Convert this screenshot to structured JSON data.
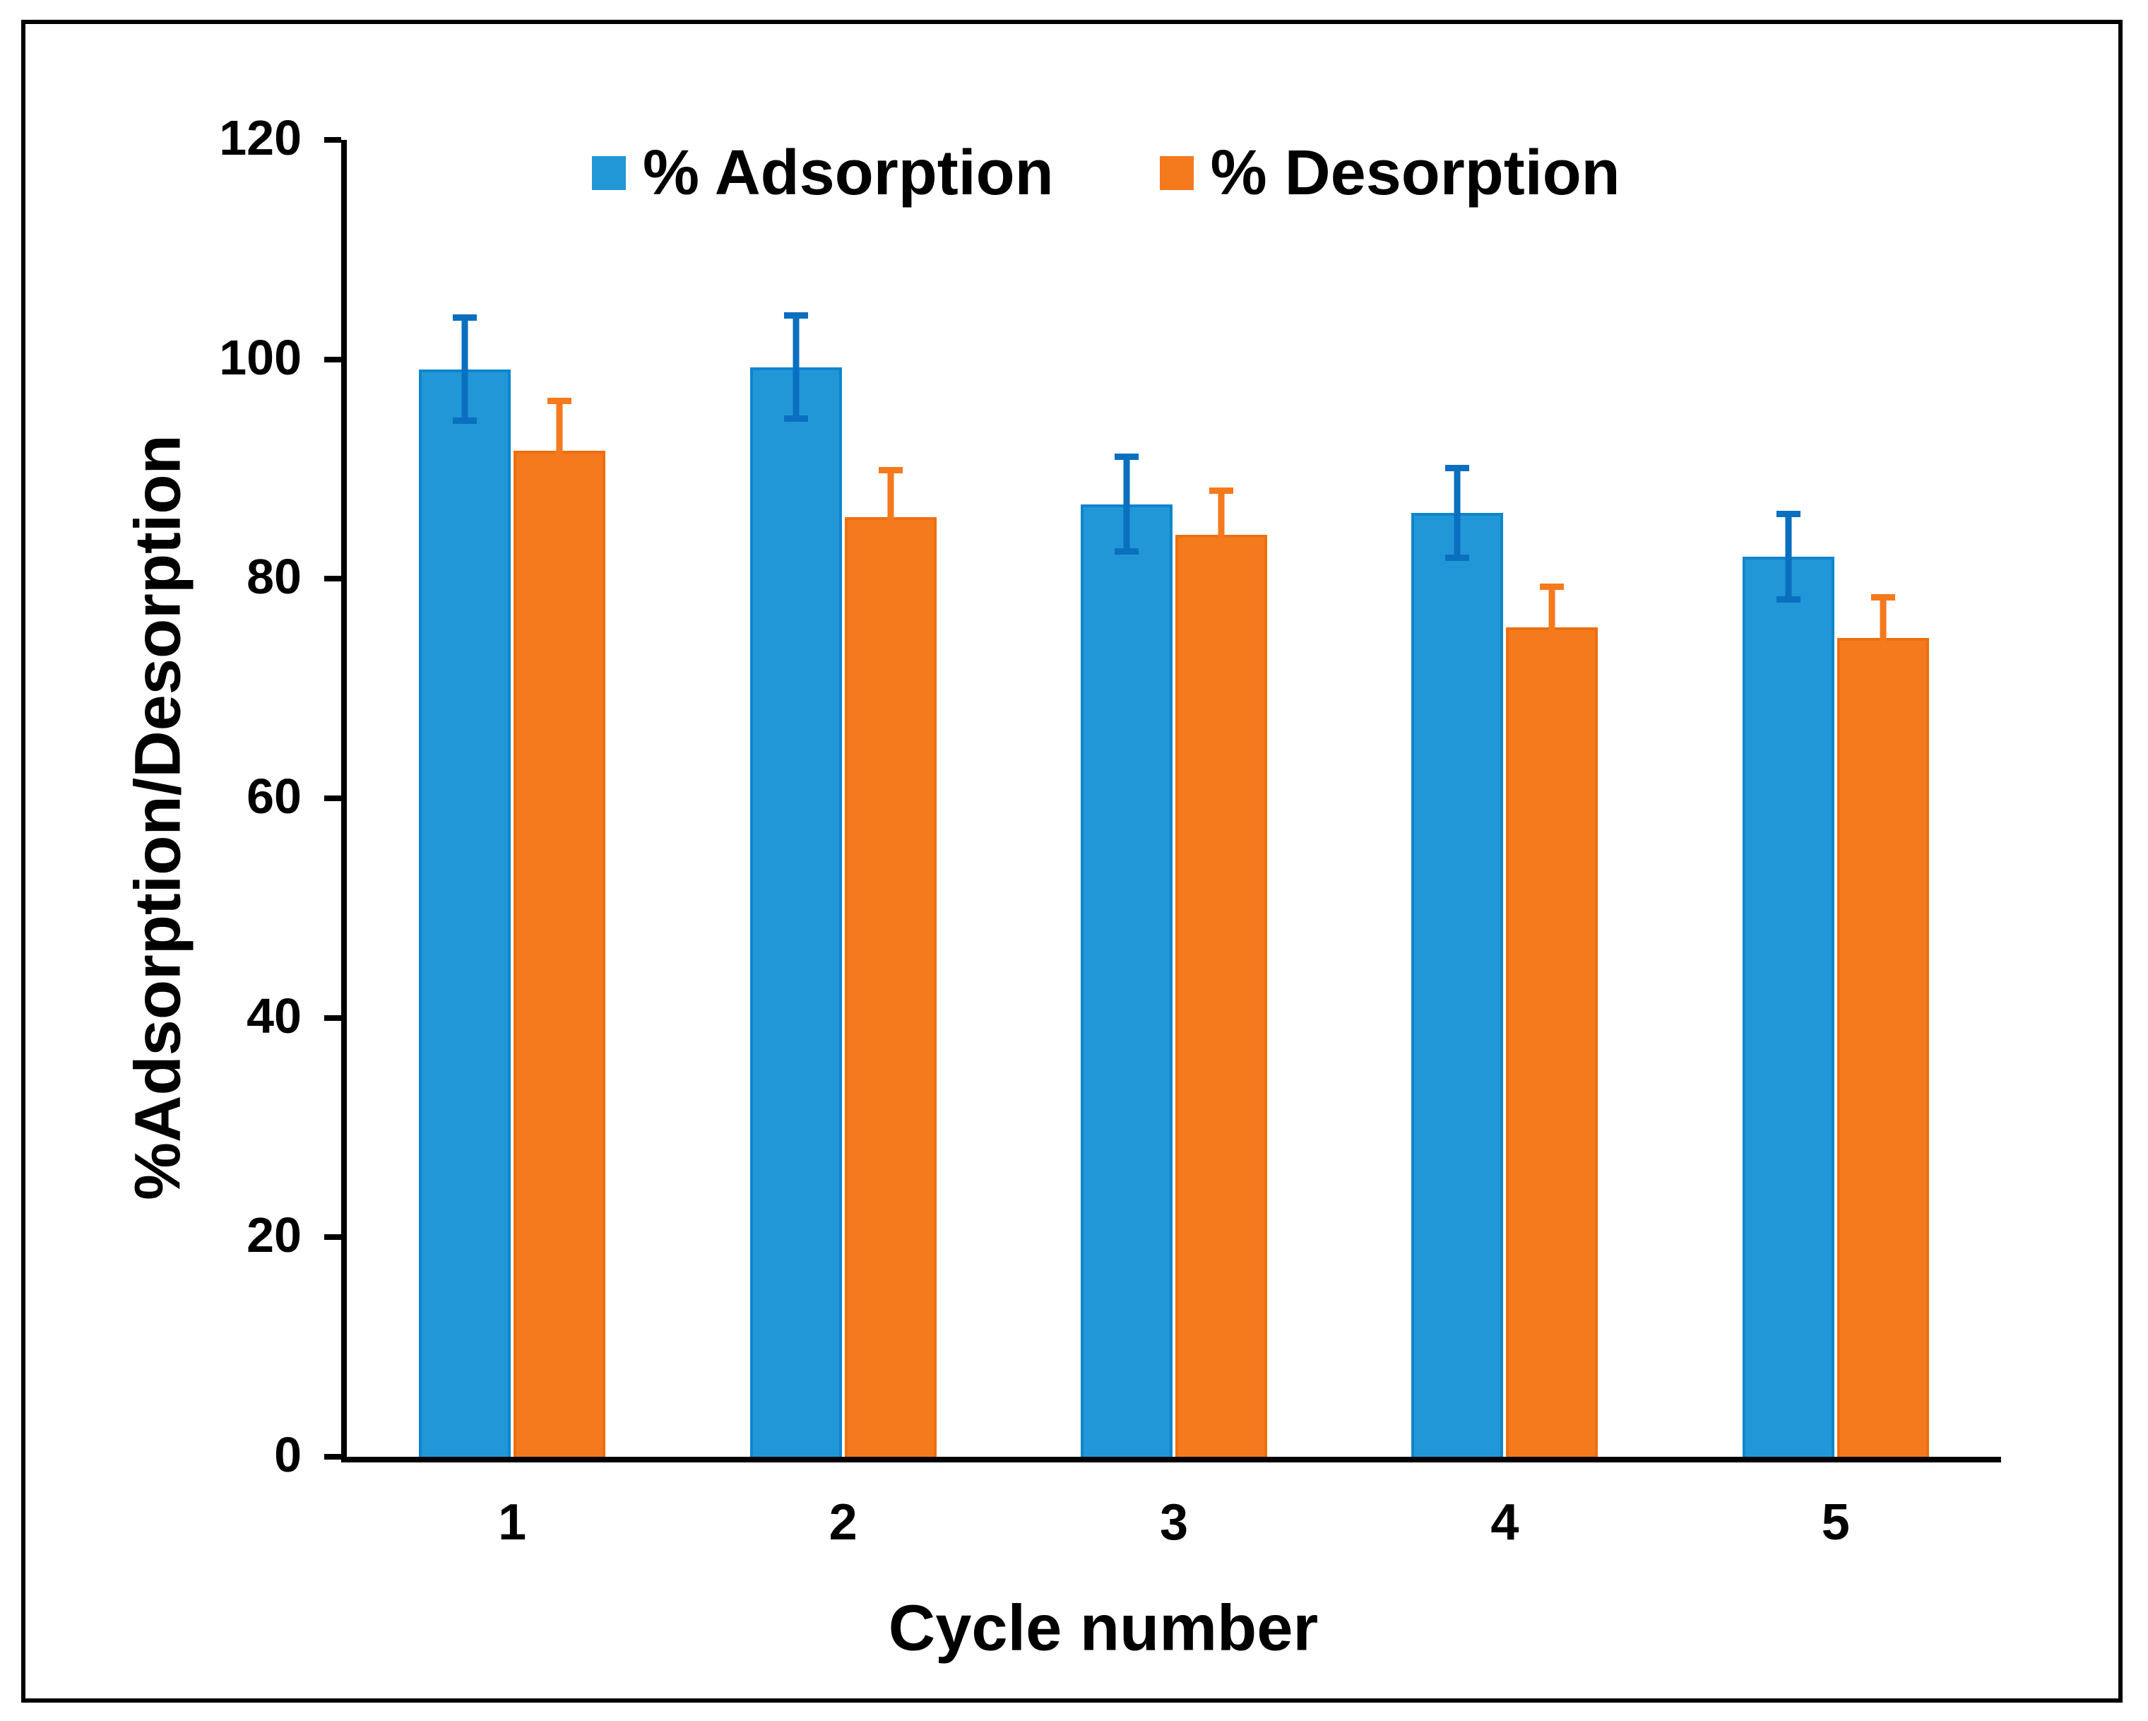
{
  "figure": {
    "background_color": "#ffffff",
    "frame_border_color": "#000000",
    "axis_color": "#000000"
  },
  "chart_data": {
    "type": "bar",
    "title": "",
    "xlabel": "Cycle number",
    "ylabel": "%Adsorption/Desorption",
    "categories": [
      "1",
      "2",
      "3",
      "4",
      "5"
    ],
    "series": [
      {
        "name": "% Adsorption",
        "color": "#2197D8",
        "border_color": "#0E86CC",
        "error_color": "#0B6FBF",
        "values": [
          99.1,
          99.3,
          86.8,
          86.0,
          82.0
        ],
        "errors": [
          5.0,
          5.0,
          4.6,
          4.4,
          4.2
        ]
      },
      {
        "name": "% Desorption",
        "color": "#F5791D",
        "border_color": "#ED6F10",
        "error_color": "#F5791D",
        "values": [
          91.7,
          85.6,
          84.0,
          75.6,
          74.6
        ],
        "errors": [
          4.8,
          4.6,
          4.3,
          4.0,
          4.0
        ]
      }
    ],
    "ylim": [
      0,
      120
    ],
    "ytick_step": 20,
    "yticks": [
      0,
      20,
      40,
      60,
      80,
      100,
      120
    ],
    "grid": false,
    "legend_position": "top-center",
    "error_bars": "both-directions"
  }
}
